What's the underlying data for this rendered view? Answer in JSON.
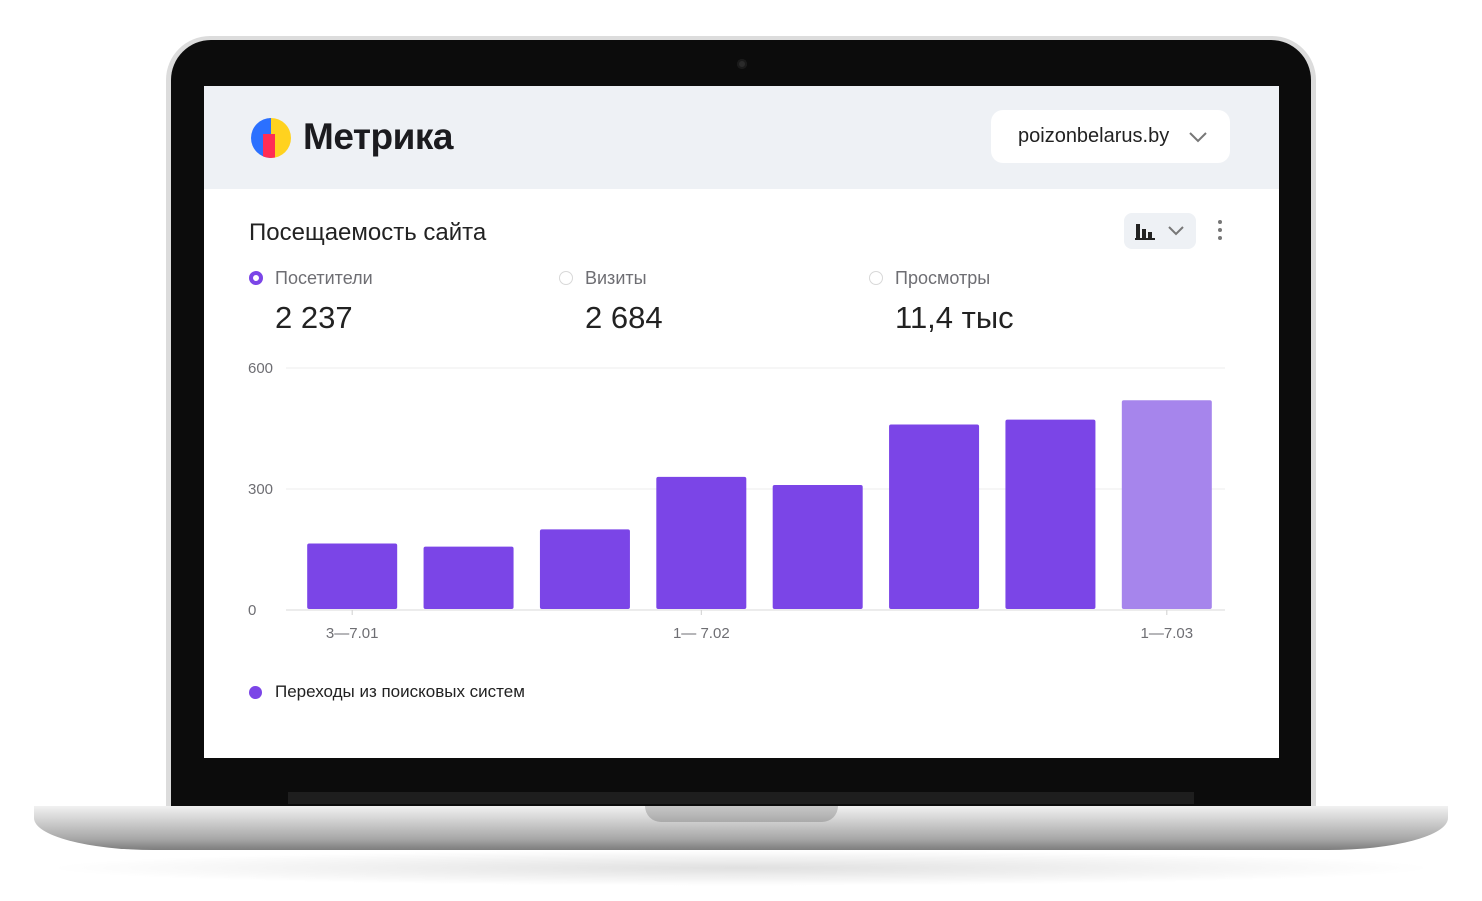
{
  "app": {
    "name": "Метрика",
    "site_selector": "poizonbelarus.by"
  },
  "card": {
    "title": "Посещаемость сайта"
  },
  "metrics": [
    {
      "label": "Посетители",
      "value": "2 237",
      "selected": true
    },
    {
      "label": "Визиты",
      "value": "2 684",
      "selected": false
    },
    {
      "label": "Просмотры",
      "value": "11,4 тыс",
      "selected": false
    }
  ],
  "icons": {
    "chart_type": "bar-chart-icon",
    "chevron": "chevron-down-icon",
    "more": "more-vertical-icon"
  },
  "colors": {
    "accent": "#7b45e7",
    "bar": "#7b45e7",
    "bar_partial": "#a685ec",
    "header_bg": "#eef1f5"
  },
  "legend": {
    "label": "Переходы из поисковых систем"
  },
  "chart_data": {
    "type": "bar",
    "categories": [
      "3—7.01",
      "",
      "",
      "1— 7.02",
      "",
      "",
      "",
      "1—7.03"
    ],
    "y_ticks": [
      0,
      300,
      600
    ],
    "ylim": [
      0,
      600
    ],
    "series": [
      {
        "name": "Переходы из поисковых систем",
        "values": [
          165,
          157,
          200,
          330,
          310,
          460,
          472,
          520
        ]
      }
    ],
    "last_bar_partial": true,
    "grid": true
  }
}
